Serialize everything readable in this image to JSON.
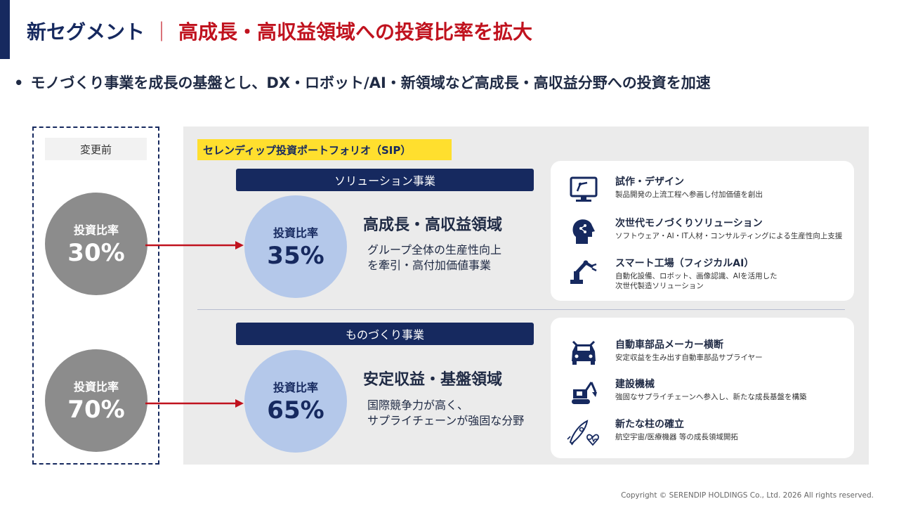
{
  "title": {
    "part1": "新セグメント",
    "separator": "｜",
    "part2": "高成長・高収益領域への投資比率を拡大"
  },
  "bullet": {
    "symbol": "•",
    "text": "モノづくり事業を成長の基盤とし、DX・ロボット/AI・新領域など高成長・高収益分野への投資を加速"
  },
  "before": {
    "label": "変更前",
    "circles": [
      {
        "caption": "投資比率",
        "percent": "30%"
      },
      {
        "caption": "投資比率",
        "percent": "70%"
      }
    ]
  },
  "portfolio": {
    "label": "セレンディップ投資ポートフォリオ（SIP）"
  },
  "solution": {
    "bar_label": "ソリューション事業",
    "circle_caption": "投資比率",
    "circle_percent": "35%",
    "domain_title": "高成長・高収益領域",
    "desc_line1": "グループ全体の生産性向上",
    "desc_line2": "を牽引・高付加価値事業",
    "items": [
      {
        "icon": "monitor-robot-arm-icon",
        "title": "試作・デザイン",
        "desc1": "製品開発の上流工程へ参画し付加価値を創出",
        "desc2": ""
      },
      {
        "icon": "ai-head-icon",
        "title": "次世代モノづくりソリューション",
        "desc1": "ソフトウェア・AI・IT人材・コンサルティングによる生産性向上支援",
        "desc2": ""
      },
      {
        "icon": "industrial-robot-arm-icon",
        "title": "スマート工場（フィジカルAI）",
        "desc1": "自動化設備、ロボット、画像認識、AIを活用した",
        "desc2": "次世代製造ソリューション"
      }
    ]
  },
  "monozukuri": {
    "bar_label": "ものづくり事業",
    "circle_caption": "投資比率",
    "circle_percent": "65%",
    "domain_title": "安定収益・基盤領域",
    "desc_line1": "国際競争力が高く、",
    "desc_line2": "サプライチェーンが強固な分野",
    "items": [
      {
        "icon": "car-wrench-icon",
        "title": "自動車部品メーカー横断",
        "desc1": "安定収益を生み出す自動車部品サプライヤー",
        "desc2": ""
      },
      {
        "icon": "excavator-icon",
        "title": "建設機械",
        "desc1": "強固なサプライチェーンへ参入し、新たな成長基盤を構築",
        "desc2": ""
      },
      {
        "icon": "rocket-heart-icon",
        "title": "新たな柱の確立",
        "desc1": "航空宇宙/医療機器 等の成長領域開拓",
        "desc2": ""
      }
    ]
  },
  "copyright": "Copyright © SERENDIP HOLDINGS Co., Ltd.  2026 All rights reserved.",
  "colors": {
    "navy": "#16295f",
    "red": "#c0121e",
    "yellow": "#ffdf2e",
    "light_blue": "#b4c8ea",
    "grey_circle": "#8c8c8c",
    "panel": "#ebebeb"
  }
}
